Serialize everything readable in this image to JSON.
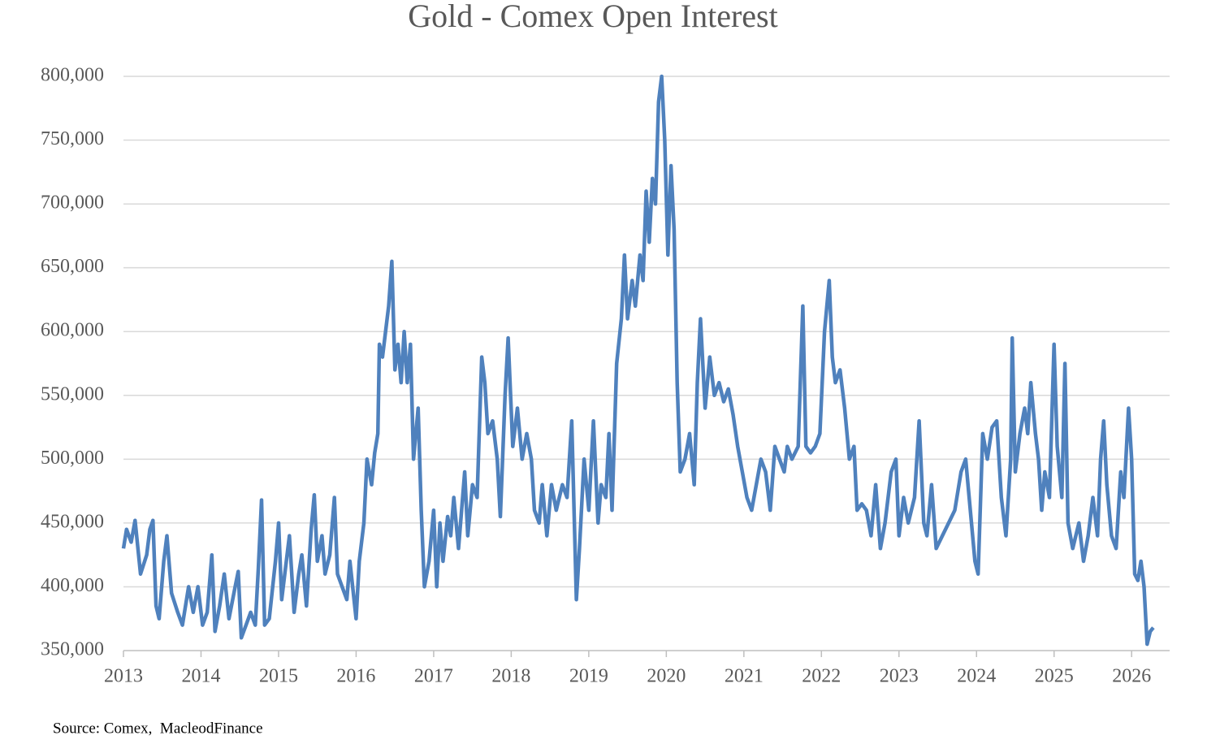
{
  "chart_data": {
    "type": "line",
    "title": "Gold - Comex Open Interest",
    "source": "Source: Comex,  MacleodFinance",
    "series": [
      {
        "name": "Open Interest",
        "color": "#4f81bd",
        "x": [
          2013.0,
          2013.04,
          2013.1,
          2013.15,
          2013.22,
          2013.3,
          2013.34,
          2013.38,
          2013.42,
          2013.46,
          2013.52,
          2013.56,
          2013.62,
          2013.7,
          2013.76,
          2013.84,
          2013.9,
          2013.96,
          2014.02,
          2014.08,
          2014.14,
          2014.18,
          2014.24,
          2014.3,
          2014.36,
          2014.44,
          2014.48,
          2014.52,
          2014.58,
          2014.64,
          2014.7,
          2014.74,
          2014.78,
          2014.82,
          2014.88,
          2014.96,
          2015.0,
          2015.04,
          2015.1,
          2015.14,
          2015.2,
          2015.26,
          2015.3,
          2015.36,
          2015.42,
          2015.46,
          2015.5,
          2015.56,
          2015.6,
          2015.66,
          2015.72,
          2015.76,
          2015.82,
          2015.88,
          2015.92,
          2016.0,
          2016.04,
          2016.1,
          2016.14,
          2016.2,
          2016.24,
          2016.28,
          2016.3,
          2016.34,
          2016.38,
          2016.42,
          2016.46,
          2016.5,
          2016.54,
          2016.58,
          2016.62,
          2016.66,
          2016.7,
          2016.74,
          2016.8,
          2016.84,
          2016.88,
          2016.94,
          2017.0,
          2017.04,
          2017.08,
          2017.12,
          2017.18,
          2017.22,
          2017.26,
          2017.32,
          2017.36,
          2017.4,
          2017.44,
          2017.5,
          2017.56,
          2017.62,
          2017.66,
          2017.7,
          2017.76,
          2017.82,
          2017.86,
          2017.92,
          2017.96,
          2018.02,
          2018.08,
          2018.14,
          2018.2,
          2018.26,
          2018.3,
          2018.36,
          2018.4,
          2018.46,
          2018.52,
          2018.58,
          2018.66,
          2018.72,
          2018.78,
          2018.84,
          2018.88,
          2018.94,
          2019.0,
          2019.06,
          2019.12,
          2019.16,
          2019.22,
          2019.26,
          2019.3,
          2019.36,
          2019.42,
          2019.46,
          2019.5,
          2019.56,
          2019.6,
          2019.66,
          2019.7,
          2019.74,
          2019.78,
          2019.82,
          2019.86,
          2019.9,
          2019.94,
          2019.98,
          2020.02,
          2020.06,
          2020.1,
          2020.14,
          2020.18,
          2020.24,
          2020.3,
          2020.36,
          2020.4,
          2020.44,
          2020.5,
          2020.56,
          2020.62,
          2020.68,
          2020.74,
          2020.8,
          2020.86,
          2020.92,
          2020.98,
          2021.04,
          2021.1,
          2021.16,
          2021.22,
          2021.28,
          2021.34,
          2021.4,
          2021.46,
          2021.52,
          2021.56,
          2021.62,
          2021.7,
          2021.76,
          2021.8,
          2021.86,
          2021.92,
          2021.98,
          2022.04,
          2022.1,
          2022.14,
          2022.18,
          2022.24,
          2022.3,
          2022.36,
          2022.42,
          2022.46,
          2022.52,
          2022.58,
          2022.64,
          2022.7,
          2022.76,
          2022.82,
          2022.9,
          2022.96,
          2023.0,
          2023.06,
          2023.12,
          2023.2,
          2023.26,
          2023.32,
          2023.36,
          2023.42,
          2023.48,
          2023.56,
          2023.64,
          2023.72,
          2023.8,
          2023.86,
          2023.92,
          2023.98,
          2024.02,
          2024.08,
          2024.14,
          2024.2,
          2024.26,
          2024.32,
          2024.38,
          2024.44,
          2024.46,
          2024.5,
          2024.56,
          2024.62,
          2024.66,
          2024.7,
          2024.76,
          2024.8,
          2024.84,
          2024.88,
          2024.94,
          2025.0,
          2025.04,
          2025.1,
          2025.14,
          2025.18,
          2025.24,
          2025.32,
          2025.38,
          2025.44,
          2025.5,
          2025.56,
          2025.6,
          2025.64,
          2025.68,
          2025.74,
          2025.8,
          2025.86,
          2025.9,
          2025.96,
          2026.0,
          2026.04,
          2026.08,
          2026.12,
          2026.16,
          2026.2,
          2026.24,
          2026.28
        ],
        "values": [
          430000,
          445000,
          435000,
          452000,
          410000,
          425000,
          445000,
          452000,
          385000,
          375000,
          420000,
          440000,
          395000,
          380000,
          370000,
          400000,
          380000,
          400000,
          370000,
          380000,
          425000,
          365000,
          385000,
          410000,
          375000,
          400000,
          412000,
          360000,
          370000,
          380000,
          370000,
          415000,
          468000,
          370000,
          375000,
          420000,
          450000,
          390000,
          420000,
          440000,
          380000,
          410000,
          425000,
          385000,
          445000,
          472000,
          420000,
          440000,
          410000,
          425000,
          470000,
          410000,
          400000,
          390000,
          420000,
          375000,
          420000,
          450000,
          500000,
          480000,
          505000,
          520000,
          590000,
          580000,
          600000,
          620000,
          655000,
          570000,
          590000,
          560000,
          600000,
          560000,
          590000,
          500000,
          540000,
          460000,
          400000,
          420000,
          460000,
          400000,
          450000,
          420000,
          455000,
          440000,
          470000,
          430000,
          460000,
          490000,
          440000,
          480000,
          470000,
          580000,
          560000,
          520000,
          530000,
          500000,
          455000,
          550000,
          595000,
          510000,
          540000,
          500000,
          520000,
          500000,
          460000,
          450000,
          480000,
          440000,
          480000,
          460000,
          480000,
          470000,
          530000,
          390000,
          430000,
          500000,
          460000,
          530000,
          450000,
          480000,
          470000,
          520000,
          460000,
          575000,
          610000,
          660000,
          610000,
          640000,
          620000,
          660000,
          640000,
          710000,
          670000,
          720000,
          700000,
          780000,
          800000,
          750000,
          660000,
          730000,
          680000,
          560000,
          490000,
          500000,
          520000,
          480000,
          560000,
          610000,
          540000,
          580000,
          550000,
          560000,
          545000,
          555000,
          535000,
          510000,
          490000,
          470000,
          460000,
          480000,
          500000,
          490000,
          460000,
          510000,
          500000,
          490000,
          510000,
          500000,
          510000,
          620000,
          510000,
          505000,
          510000,
          520000,
          600000,
          640000,
          580000,
          560000,
          570000,
          540000,
          500000,
          510000,
          460000,
          465000,
          460000,
          440000,
          480000,
          430000,
          450000,
          490000,
          500000,
          440000,
          470000,
          450000,
          470000,
          530000,
          450000,
          440000,
          480000,
          430000,
          440000,
          450000,
          460000,
          490000,
          500000,
          460000,
          420000,
          410000,
          520000,
          500000,
          525000,
          530000,
          470000,
          440000,
          500000,
          595000,
          490000,
          520000,
          540000,
          520000,
          560000,
          520000,
          500000,
          460000,
          490000,
          470000,
          590000,
          510000,
          470000,
          575000,
          450000,
          430000,
          450000,
          420000,
          440000,
          470000,
          440000,
          500000,
          530000,
          480000,
          440000,
          430000,
          490000,
          470000,
          540000,
          500000,
          410000,
          405000,
          420000,
          400000,
          355000,
          365000,
          368000
        ]
      }
    ],
    "xlim": [
      2013,
      2026.49
    ],
    "xticks": [
      2013,
      2014,
      2015,
      2016,
      2017,
      2018,
      2019,
      2020,
      2021,
      2022,
      2023,
      2024,
      2025,
      2026
    ],
    "ylim": [
      350000,
      800000
    ],
    "yticks": [
      {
        "value": 350000,
        "label": "350,000"
      },
      {
        "value": 400000,
        "label": "400,000"
      },
      {
        "value": 450000,
        "label": "450,000"
      },
      {
        "value": 500000,
        "label": "500,000"
      },
      {
        "value": 550000,
        "label": "550,000"
      },
      {
        "value": 600000,
        "label": "600,000"
      },
      {
        "value": 650000,
        "label": "650,000"
      },
      {
        "value": 700000,
        "label": "700,000"
      },
      {
        "value": 750000,
        "label": "750,000"
      },
      {
        "value": 800000,
        "label": "800,000"
      }
    ],
    "grid": true
  }
}
